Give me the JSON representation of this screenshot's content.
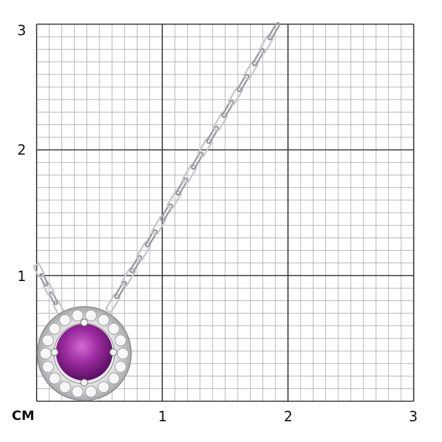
{
  "scale": {
    "unit_label": "CM",
    "y_labels": [
      "1",
      "2",
      "3"
    ],
    "x_labels": [
      "1",
      "2",
      "3"
    ]
  },
  "product": {
    "type": "pendant necklace",
    "center_stone_color": "#9b2a9e",
    "metal_color": "#d9d9dc"
  },
  "colors": {
    "minor_grid": "#b5b5b5",
    "major_grid": "#333333"
  }
}
